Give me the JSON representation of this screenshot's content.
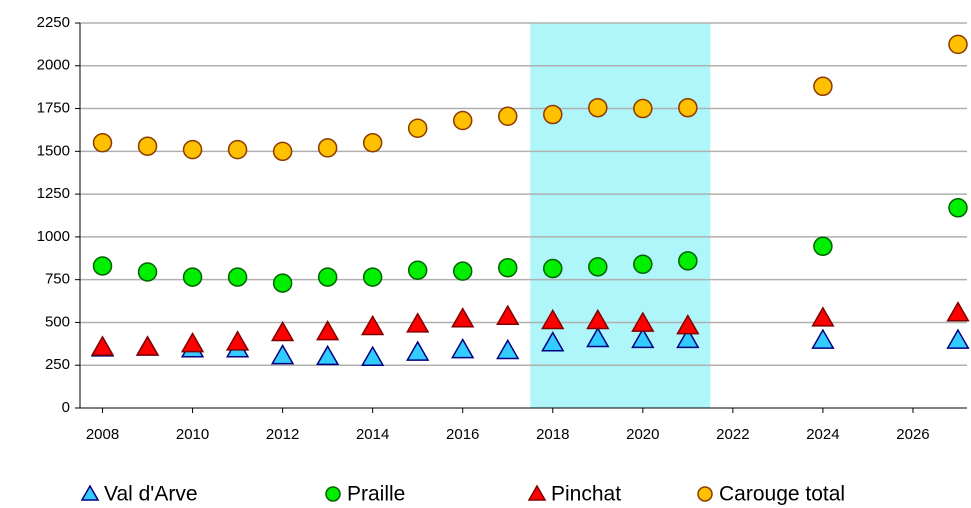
{
  "chart_data": {
    "type": "scatter",
    "x": [
      2008,
      2009,
      2010,
      2011,
      2012,
      2013,
      2014,
      2015,
      2016,
      2017,
      2018,
      2019,
      2020,
      2021,
      2024,
      2027
    ],
    "series": [
      {
        "name": "Val d'Arve",
        "color": "#33ccff",
        "edge": "#000080",
        "marker": "triangle",
        "values": [
          350,
          355,
          345,
          345,
          305,
          300,
          295,
          325,
          340,
          335,
          380,
          405,
          400,
          400,
          395,
          395
        ]
      },
      {
        "name": "Praille",
        "color": "#00ee00",
        "edge": "#006400",
        "marker": "circle",
        "values": [
          830,
          795,
          765,
          765,
          730,
          765,
          765,
          805,
          800,
          820,
          815,
          825,
          840,
          860,
          945,
          1170
        ]
      },
      {
        "name": "Pinchat",
        "color": "#ff0000",
        "edge": "#800000",
        "marker": "triangle",
        "values": [
          355,
          355,
          375,
          385,
          440,
          445,
          475,
          490,
          520,
          535,
          510,
          510,
          495,
          480,
          525,
          555
        ]
      },
      {
        "name": "Carouge total",
        "color": "#ffc000",
        "edge": "#8b3a00",
        "marker": "circle",
        "values": [
          1550,
          1530,
          1510,
          1510,
          1500,
          1520,
          1550,
          1635,
          1680,
          1705,
          1715,
          1755,
          1750,
          1755,
          1880,
          2125
        ]
      }
    ],
    "xlim": [
      2007.5,
      2027.2
    ],
    "xticks": [
      2008,
      2010,
      2012,
      2014,
      2016,
      2018,
      2020,
      2022,
      2024,
      2026
    ],
    "ylim": [
      0,
      2250
    ],
    "yticks": [
      0,
      250,
      500,
      750,
      1000,
      1250,
      1500,
      1750,
      2000,
      2250
    ],
    "grid": true,
    "legend": "bottom",
    "highlight": {
      "x": [
        2017.5,
        2021.5
      ],
      "color": "#aff6fa"
    }
  }
}
